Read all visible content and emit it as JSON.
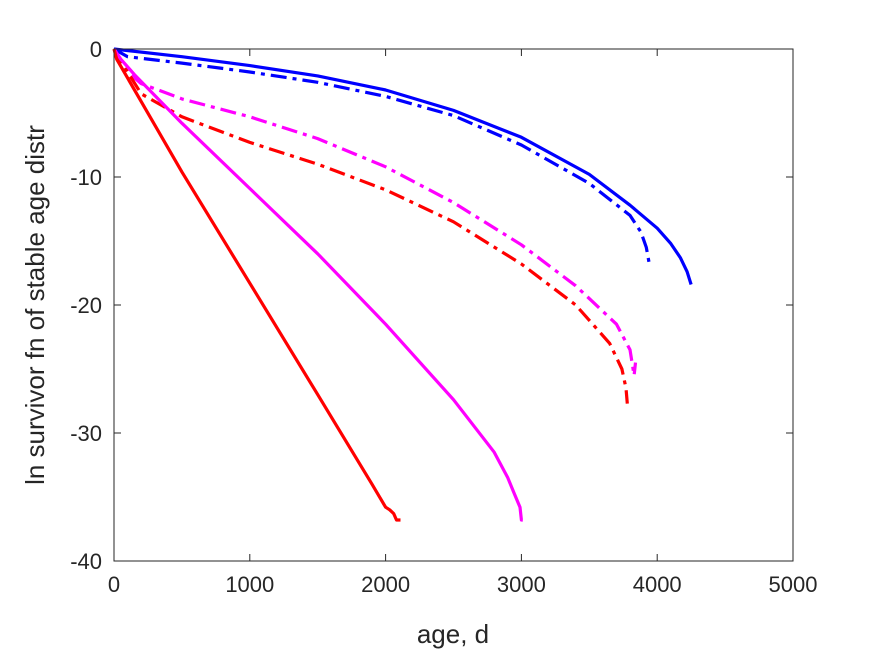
{
  "chart_data": {
    "type": "line",
    "title": "",
    "xlabel": "age, d",
    "ylabel": "ln survivor fn of stable age distr",
    "xlim": [
      0,
      5000
    ],
    "ylim": [
      -40,
      0
    ],
    "xticks": [
      0,
      1000,
      2000,
      3000,
      4000,
      5000
    ],
    "yticks": [
      0,
      -10,
      -20,
      -30,
      -40
    ],
    "xtick_labels": [
      "0",
      "1000",
      "2000",
      "3000",
      "4000",
      "5000"
    ],
    "ytick_labels": [
      "0",
      "-10",
      "-20",
      "-30",
      "-40"
    ],
    "grid": false,
    "legend": "none",
    "series": [
      {
        "color": "#0000ff",
        "style": "solid",
        "x": [
          0,
          500,
          1000,
          1500,
          2000,
          2500,
          3000,
          3500,
          3800,
          4000,
          4100,
          4170,
          4220,
          4250
        ],
        "y": [
          0,
          -0.6,
          -1.3,
          -2.1,
          -3.2,
          -4.8,
          -6.9,
          -9.8,
          -12.2,
          -14.0,
          -15.2,
          -16.3,
          -17.4,
          -18.4
        ]
      },
      {
        "color": "#0000ff",
        "style": "dashdot",
        "x": [
          0,
          100,
          500,
          1000,
          1500,
          2000,
          2500,
          3000,
          3500,
          3800,
          3880,
          3920,
          3940
        ],
        "y": [
          0,
          -0.6,
          -1.1,
          -1.8,
          -2.6,
          -3.7,
          -5.2,
          -7.5,
          -10.5,
          -13.0,
          -14.3,
          -15.5,
          -16.7
        ]
      },
      {
        "color": "#ff00ff",
        "style": "dashdot",
        "x": [
          0,
          100,
          200,
          500,
          1000,
          1500,
          2000,
          2500,
          3000,
          3400,
          3700,
          3800,
          3830,
          3840
        ],
        "y": [
          0,
          -1.8,
          -2.7,
          -3.9,
          -5.3,
          -7.0,
          -9.2,
          -12.0,
          -15.3,
          -18.5,
          -21.5,
          -23.5,
          -25.5,
          -24.5
        ]
      },
      {
        "color": "#ff0000",
        "style": "dashdot",
        "x": [
          0,
          100,
          200,
          500,
          1000,
          1500,
          2000,
          2500,
          3000,
          3400,
          3650,
          3740,
          3770,
          3780
        ],
        "y": [
          0,
          -1.8,
          -3.5,
          -5.3,
          -7.3,
          -9.0,
          -11.0,
          -13.5,
          -16.8,
          -20.0,
          -23.0,
          -25.0,
          -26.5,
          -27.7
        ]
      },
      {
        "color": "#ff00ff",
        "style": "solid",
        "x": [
          0,
          50,
          150,
          500,
          1000,
          1500,
          2000,
          2500,
          2800,
          2900,
          2950,
          2990,
          3000,
          3010
        ],
        "y": [
          0,
          -0.8,
          -2.0,
          -5.8,
          -10.9,
          -16.0,
          -21.5,
          -27.4,
          -31.5,
          -33.5,
          -34.8,
          -35.8,
          -36.8,
          -36.8
        ]
      },
      {
        "color": "#ff0000",
        "style": "solid",
        "x": [
          0,
          20,
          500,
          1000,
          1500,
          1900,
          2000,
          2030,
          2060,
          2080,
          2090,
          2110
        ],
        "y": [
          0,
          -0.8,
          -9.6,
          -18.3,
          -27.0,
          -34.0,
          -35.8,
          -36.0,
          -36.3,
          -36.8,
          -36.8,
          -36.8
        ]
      }
    ]
  }
}
